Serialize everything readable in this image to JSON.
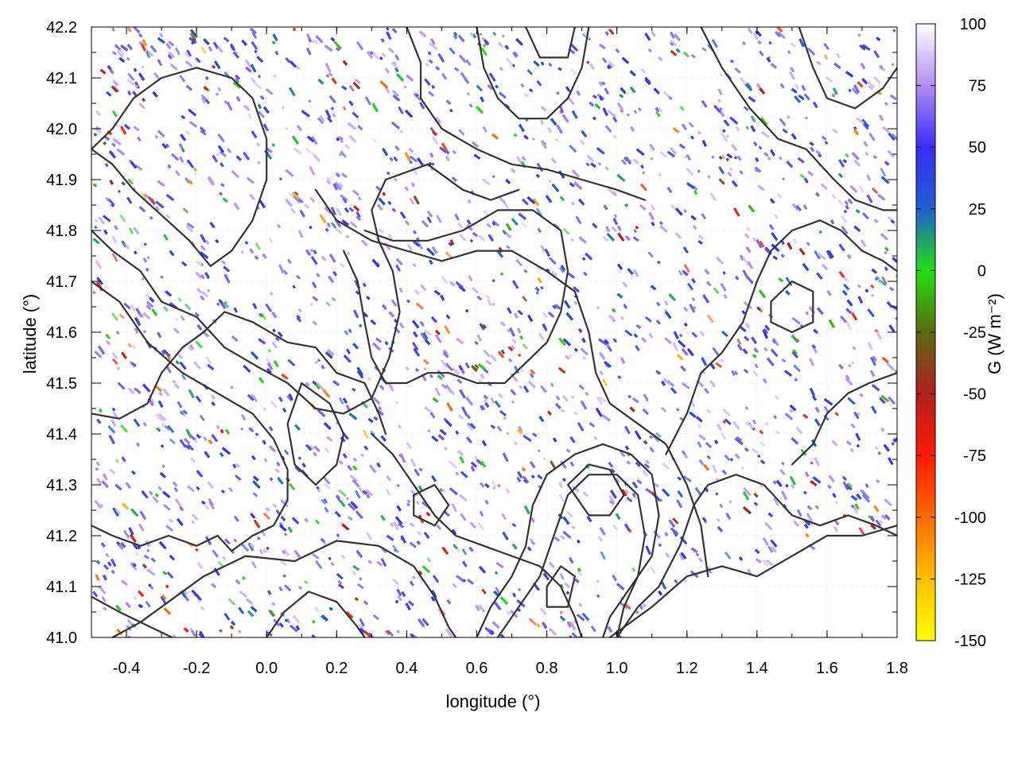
{
  "chart_data": {
    "type": "heatmap",
    "title": "",
    "xlabel": "longitude (°)",
    "ylabel": "latitude (°)",
    "colorbar_label": "G (W m⁻²)",
    "xlim": [
      -0.5,
      1.8
    ],
    "ylim": [
      41.0,
      42.2
    ],
    "x_ticks": [
      -0.4,
      -0.2,
      0.0,
      0.2,
      0.4,
      0.6,
      0.8,
      1.0,
      1.2,
      1.4,
      1.6,
      1.8
    ],
    "x_tick_labels": [
      "-0.4",
      "-0.2",
      "0.0",
      "0.2",
      "0.4",
      "0.6",
      "0.8",
      "1.0",
      "1.2",
      "1.4",
      "1.6",
      "1.8"
    ],
    "y_ticks": [
      41.0,
      41.1,
      41.2,
      41.3,
      41.4,
      41.5,
      41.6,
      41.7,
      41.8,
      41.9,
      42.0,
      42.1,
      42.2
    ],
    "y_tick_labels": [
      "41.0",
      "41.1",
      "41.2",
      "41.3",
      "41.4",
      "41.5",
      "41.6",
      "41.7",
      "41.8",
      "41.9",
      "42.0",
      "42.1",
      "42.2"
    ],
    "colorbar": {
      "range": [
        -150,
        100
      ],
      "ticks": [
        100,
        75,
        50,
        25,
        0,
        -25,
        -50,
        -75,
        -100,
        -125,
        -150
      ],
      "tick_labels": [
        "100",
        "75",
        "50",
        "25",
        "0",
        "-25",
        "-50",
        "-75",
        "-100",
        "-125",
        "-150"
      ],
      "stops": [
        {
          "value": 100,
          "color": "#ffffff"
        },
        {
          "value": 75,
          "color": "#b38cf2"
        },
        {
          "value": 50,
          "color": "#3a2cf5"
        },
        {
          "value": 25,
          "color": "#1e5fd0"
        },
        {
          "value": 0,
          "color": "#22e010"
        },
        {
          "value": -25,
          "color": "#5a6a10"
        },
        {
          "value": -50,
          "color": "#b0201e"
        },
        {
          "value": -75,
          "color": "#ff1a00"
        },
        {
          "value": -100,
          "color": "#ff6a00"
        },
        {
          "value": -125,
          "color": "#ffc000"
        },
        {
          "value": -150,
          "color": "#ffff00"
        }
      ]
    },
    "no_data_region": "lower-right (coast/sea)",
    "grid": true,
    "contours": [
      [
        [
          -0.5,
          41.08
        ],
        [
          -0.42,
          41.05
        ],
        [
          -0.33,
          41.02
        ],
        [
          -0.27,
          41.0
        ]
      ],
      [
        [
          -0.44,
          41.0
        ],
        [
          -0.36,
          41.03
        ],
        [
          -0.28,
          41.07
        ],
        [
          -0.18,
          41.12
        ],
        [
          -0.06,
          41.16
        ],
        [
          0.08,
          41.15
        ],
        [
          0.2,
          41.19
        ],
        [
          0.32,
          41.18
        ],
        [
          0.42,
          41.14
        ],
        [
          0.48,
          41.08
        ],
        [
          0.52,
          41.02
        ],
        [
          0.54,
          41.0
        ]
      ],
      [
        [
          0.0,
          41.0
        ],
        [
          0.05,
          41.05
        ],
        [
          0.12,
          41.09
        ],
        [
          0.2,
          41.07
        ],
        [
          0.26,
          41.02
        ],
        [
          0.28,
          41.0
        ]
      ],
      [
        [
          -0.5,
          41.22
        ],
        [
          -0.44,
          41.2
        ],
        [
          -0.36,
          41.18
        ],
        [
          -0.28,
          41.2
        ],
        [
          -0.2,
          41.18
        ],
        [
          -0.14,
          41.2
        ],
        [
          -0.1,
          41.17
        ],
        [
          -0.04,
          41.2
        ],
        [
          0.02,
          41.22
        ],
        [
          0.06,
          41.27
        ],
        [
          0.06,
          41.33
        ],
        [
          0.02,
          41.39
        ],
        [
          -0.04,
          41.44
        ],
        [
          -0.14,
          41.48
        ],
        [
          -0.24,
          41.52
        ],
        [
          -0.34,
          41.58
        ],
        [
          -0.42,
          41.66
        ],
        [
          -0.5,
          41.7
        ]
      ],
      [
        [
          -0.5,
          41.44
        ],
        [
          -0.42,
          41.43
        ],
        [
          -0.34,
          41.46
        ],
        [
          -0.3,
          41.52
        ],
        [
          -0.24,
          41.57
        ],
        [
          -0.18,
          41.6
        ],
        [
          -0.12,
          41.64
        ],
        [
          -0.04,
          41.62
        ],
        [
          0.06,
          41.58
        ],
        [
          0.14,
          41.57
        ],
        [
          0.2,
          41.52
        ],
        [
          0.28,
          41.5
        ],
        [
          0.32,
          41.44
        ],
        [
          0.34,
          41.4
        ]
      ],
      [
        [
          -0.5,
          41.8
        ],
        [
          -0.44,
          41.76
        ],
        [
          -0.36,
          41.72
        ],
        [
          -0.3,
          41.66
        ],
        [
          -0.2,
          41.63
        ],
        [
          -0.12,
          41.57
        ],
        [
          -0.02,
          41.53
        ],
        [
          0.06,
          41.5
        ],
        [
          0.14,
          41.45
        ],
        [
          0.22,
          41.44
        ],
        [
          0.3,
          41.47
        ],
        [
          0.35,
          41.55
        ],
        [
          0.38,
          41.64
        ],
        [
          0.36,
          41.72
        ],
        [
          0.32,
          41.78
        ],
        [
          0.3,
          41.84
        ],
        [
          0.34,
          41.9
        ],
        [
          0.46,
          41.93
        ],
        [
          0.56,
          41.88
        ],
        [
          0.64,
          41.86
        ],
        [
          0.72,
          41.88
        ]
      ],
      [
        [
          -0.5,
          41.96
        ],
        [
          -0.44,
          41.93
        ],
        [
          -0.38,
          41.88
        ],
        [
          -0.3,
          41.83
        ],
        [
          -0.22,
          41.78
        ],
        [
          -0.16,
          41.73
        ],
        [
          -0.1,
          41.76
        ],
        [
          -0.04,
          41.82
        ],
        [
          0.0,
          41.9
        ],
        [
          0.0,
          41.98
        ],
        [
          -0.04,
          42.06
        ],
        [
          -0.1,
          42.1
        ],
        [
          -0.2,
          42.12
        ],
        [
          -0.3,
          42.1
        ],
        [
          -0.38,
          42.06
        ],
        [
          -0.44,
          42.0
        ],
        [
          -0.5,
          41.96
        ]
      ],
      [
        [
          0.4,
          42.2
        ],
        [
          0.44,
          42.13
        ],
        [
          0.44,
          42.06
        ],
        [
          0.5,
          42.0
        ],
        [
          0.6,
          41.96
        ],
        [
          0.7,
          41.93
        ],
        [
          0.8,
          41.92
        ],
        [
          0.9,
          41.9
        ],
        [
          1.0,
          41.88
        ],
        [
          1.08,
          41.86
        ]
      ],
      [
        [
          0.6,
          42.2
        ],
        [
          0.62,
          42.12
        ],
        [
          0.66,
          42.06
        ],
        [
          0.72,
          42.02
        ],
        [
          0.8,
          42.02
        ],
        [
          0.86,
          42.06
        ],
        [
          0.9,
          42.12
        ],
        [
          0.92,
          42.2
        ]
      ],
      [
        [
          0.74,
          42.2
        ],
        [
          0.78,
          42.14
        ],
        [
          0.86,
          42.14
        ],
        [
          0.88,
          42.2
        ]
      ],
      [
        [
          0.14,
          41.88
        ],
        [
          0.2,
          41.82
        ],
        [
          0.3,
          41.78
        ],
        [
          0.4,
          41.76
        ],
        [
          0.5,
          41.74
        ],
        [
          0.6,
          41.76
        ],
        [
          0.7,
          41.76
        ],
        [
          0.8,
          41.72
        ],
        [
          0.88,
          41.68
        ],
        [
          0.92,
          41.6
        ],
        [
          0.94,
          41.52
        ],
        [
          0.98,
          41.46
        ],
        [
          1.06,
          41.42
        ],
        [
          1.14,
          41.38
        ],
        [
          1.2,
          41.3
        ],
        [
          1.24,
          41.22
        ],
        [
          1.26,
          41.12
        ]
      ],
      [
        [
          0.22,
          41.76
        ],
        [
          0.26,
          41.7
        ],
        [
          0.28,
          41.62
        ],
        [
          0.3,
          41.55
        ],
        [
          0.34,
          41.5
        ],
        [
          0.4,
          41.5
        ],
        [
          0.46,
          41.52
        ],
        [
          0.52,
          41.52
        ],
        [
          0.6,
          41.5
        ],
        [
          0.68,
          41.5
        ],
        [
          0.74,
          41.54
        ],
        [
          0.8,
          41.58
        ],
        [
          0.84,
          41.64
        ],
        [
          0.86,
          41.72
        ],
        [
          0.84,
          41.8
        ],
        [
          0.76,
          41.84
        ],
        [
          0.66,
          41.84
        ],
        [
          0.56,
          41.8
        ],
        [
          0.46,
          41.78
        ],
        [
          0.36,
          41.78
        ],
        [
          0.28,
          41.8
        ]
      ],
      [
        [
          0.3,
          41.4
        ],
        [
          0.36,
          41.36
        ],
        [
          0.42,
          41.3
        ],
        [
          0.48,
          41.24
        ],
        [
          0.54,
          41.2
        ],
        [
          0.62,
          41.18
        ],
        [
          0.7,
          41.16
        ],
        [
          0.78,
          41.14
        ],
        [
          0.84,
          41.1
        ],
        [
          0.88,
          41.04
        ],
        [
          0.9,
          41.0
        ]
      ],
      [
        [
          0.6,
          41.0
        ],
        [
          0.64,
          41.06
        ],
        [
          0.7,
          41.12
        ],
        [
          0.74,
          41.18
        ],
        [
          0.76,
          41.26
        ],
        [
          0.8,
          41.32
        ],
        [
          0.88,
          41.36
        ],
        [
          0.96,
          41.38
        ],
        [
          1.04,
          41.36
        ],
        [
          1.1,
          41.32
        ],
        [
          1.12,
          41.24
        ],
        [
          1.1,
          41.16
        ],
        [
          1.04,
          41.1
        ],
        [
          0.98,
          41.04
        ],
        [
          0.96,
          41.0
        ]
      ],
      [
        [
          0.66,
          41.0
        ],
        [
          0.72,
          41.06
        ],
        [
          0.78,
          41.12
        ],
        [
          0.82,
          41.2
        ],
        [
          0.86,
          41.28
        ],
        [
          0.92,
          41.32
        ],
        [
          1.0,
          41.32
        ],
        [
          1.06,
          41.28
        ],
        [
          1.08,
          41.2
        ],
        [
          1.06,
          41.12
        ],
        [
          1.02,
          41.06
        ],
        [
          1.0,
          41.0
        ]
      ],
      [
        [
          0.86,
          41.3
        ],
        [
          0.92,
          41.34
        ],
        [
          0.98,
          41.33
        ],
        [
          1.02,
          41.28
        ],
        [
          0.98,
          41.24
        ],
        [
          0.92,
          41.24
        ],
        [
          0.86,
          41.3
        ]
      ],
      [
        [
          0.8,
          41.1
        ],
        [
          0.84,
          41.14
        ],
        [
          0.88,
          41.12
        ],
        [
          0.86,
          41.06
        ],
        [
          0.8,
          41.06
        ],
        [
          0.8,
          41.1
        ]
      ],
      [
        [
          1.0,
          41.0
        ],
        [
          1.06,
          41.06
        ],
        [
          1.12,
          41.1
        ],
        [
          1.18,
          41.18
        ],
        [
          1.22,
          41.26
        ],
        [
          1.26,
          41.3
        ],
        [
          1.34,
          41.32
        ],
        [
          1.42,
          41.3
        ],
        [
          1.5,
          41.24
        ],
        [
          1.58,
          41.22
        ],
        [
          1.66,
          41.24
        ],
        [
          1.74,
          41.22
        ],
        [
          1.8,
          41.2
        ]
      ],
      [
        [
          1.14,
          41.36
        ],
        [
          1.2,
          41.44
        ],
        [
          1.24,
          41.52
        ],
        [
          1.3,
          41.56
        ],
        [
          1.36,
          41.62
        ],
        [
          1.4,
          41.7
        ],
        [
          1.44,
          41.76
        ],
        [
          1.5,
          41.8
        ],
        [
          1.58,
          41.82
        ],
        [
          1.64,
          41.8
        ],
        [
          1.7,
          41.76
        ],
        [
          1.76,
          41.74
        ],
        [
          1.8,
          41.72
        ]
      ],
      [
        [
          1.5,
          41.34
        ],
        [
          1.56,
          41.38
        ],
        [
          1.6,
          41.44
        ],
        [
          1.66,
          41.48
        ],
        [
          1.72,
          41.5
        ],
        [
          1.8,
          41.52
        ]
      ],
      [
        [
          1.44,
          41.62
        ],
        [
          1.5,
          41.6
        ],
        [
          1.56,
          41.62
        ],
        [
          1.56,
          41.68
        ],
        [
          1.5,
          41.7
        ],
        [
          1.44,
          41.66
        ],
        [
          1.44,
          41.62
        ]
      ],
      [
        [
          1.24,
          42.2
        ],
        [
          1.3,
          42.12
        ],
        [
          1.38,
          42.04
        ],
        [
          1.46,
          41.98
        ],
        [
          1.54,
          41.96
        ],
        [
          1.62,
          41.9
        ],
        [
          1.68,
          41.86
        ],
        [
          1.76,
          41.84
        ],
        [
          1.8,
          41.84
        ]
      ],
      [
        [
          1.52,
          42.2
        ],
        [
          1.56,
          42.12
        ],
        [
          1.6,
          42.06
        ],
        [
          1.68,
          42.04
        ],
        [
          1.76,
          42.08
        ],
        [
          1.8,
          42.12
        ]
      ],
      [
        [
          0.1,
          41.5
        ],
        [
          0.18,
          41.46
        ],
        [
          0.22,
          41.4
        ],
        [
          0.2,
          41.34
        ],
        [
          0.14,
          41.3
        ],
        [
          0.08,
          41.34
        ],
        [
          0.06,
          41.42
        ],
        [
          0.1,
          41.5
        ]
      ],
      [
        [
          0.42,
          41.28
        ],
        [
          0.48,
          41.3
        ],
        [
          0.52,
          41.26
        ],
        [
          0.48,
          41.22
        ],
        [
          0.42,
          41.24
        ],
        [
          0.42,
          41.28
        ]
      ]
    ],
    "coastline": [
      [
        0.98,
        41.0
      ],
      [
        1.1,
        41.06
      ],
      [
        1.2,
        41.12
      ],
      [
        1.3,
        41.14
      ],
      [
        1.4,
        41.12
      ],
      [
        1.5,
        41.16
      ],
      [
        1.6,
        41.2
      ],
      [
        1.7,
        41.2
      ],
      [
        1.8,
        41.22
      ]
    ]
  }
}
